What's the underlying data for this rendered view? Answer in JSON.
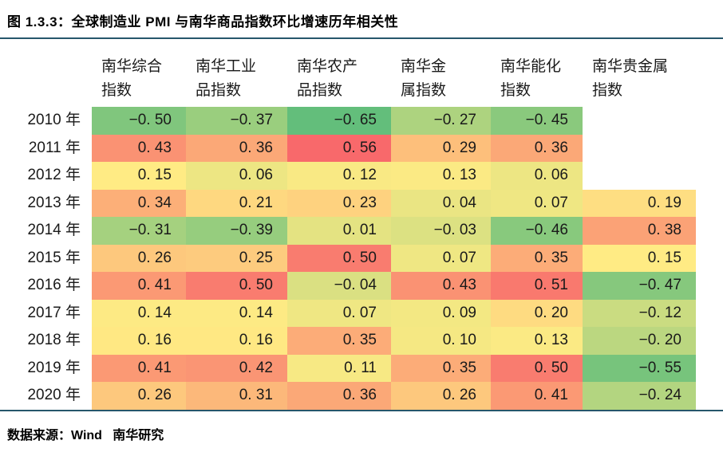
{
  "figure": {
    "title": "图 1.3.3：全球制造业 PMI 与南华商品指数环比增速历年相关性",
    "source": "数据来源：Wind   南华研究",
    "rule_color": "#26566b"
  },
  "chart_data": {
    "type": "heatmap",
    "figure_label": "图 1.3.3",
    "title": "全球制造业 PMI 与南华商品指数环比增速历年相关性",
    "columns": [
      "南华综合\n指数",
      "南华工业\n品指数",
      "南华农产\n品指数",
      "南华金\n属指数",
      "南华能化\n指数",
      "南华贵金属\n指数"
    ],
    "rows": [
      "2010 年",
      "2011 年",
      "2012 年",
      "2013 年",
      "2014 年",
      "2015 年",
      "2016 年",
      "2017 年",
      "2018 年",
      "2019 年",
      "2020 年"
    ],
    "values": [
      [
        -0.5,
        -0.37,
        -0.65,
        -0.27,
        -0.45,
        null
      ],
      [
        0.43,
        0.36,
        0.56,
        0.29,
        0.36,
        null
      ],
      [
        0.15,
        0.06,
        0.12,
        0.13,
        0.06,
        null
      ],
      [
        0.34,
        0.21,
        0.23,
        0.04,
        0.07,
        0.19
      ],
      [
        -0.31,
        -0.39,
        0.01,
        -0.03,
        -0.46,
        0.38
      ],
      [
        0.26,
        0.25,
        0.5,
        0.07,
        0.35,
        0.15
      ],
      [
        0.41,
        0.5,
        -0.04,
        0.43,
        0.51,
        -0.47
      ],
      [
        0.14,
        0.14,
        0.07,
        0.09,
        0.2,
        -0.12
      ],
      [
        0.16,
        0.16,
        0.35,
        0.1,
        0.13,
        -0.2
      ],
      [
        0.41,
        0.42,
        0.11,
        0.35,
        0.5,
        -0.55
      ],
      [
        0.26,
        0.31,
        0.36,
        0.26,
        0.41,
        -0.24
      ]
    ],
    "color_scale": {
      "min": {
        "value": -0.65,
        "color": "#63BE7B"
      },
      "mid": {
        "value": 0.15,
        "color": "#FFEB84"
      },
      "max": {
        "value": 0.56,
        "color": "#F8696B"
      }
    },
    "legend_position": "none",
    "grid": false,
    "value_range": [
      -0.65,
      0.56
    ],
    "source": "Wind   南华研究"
  }
}
